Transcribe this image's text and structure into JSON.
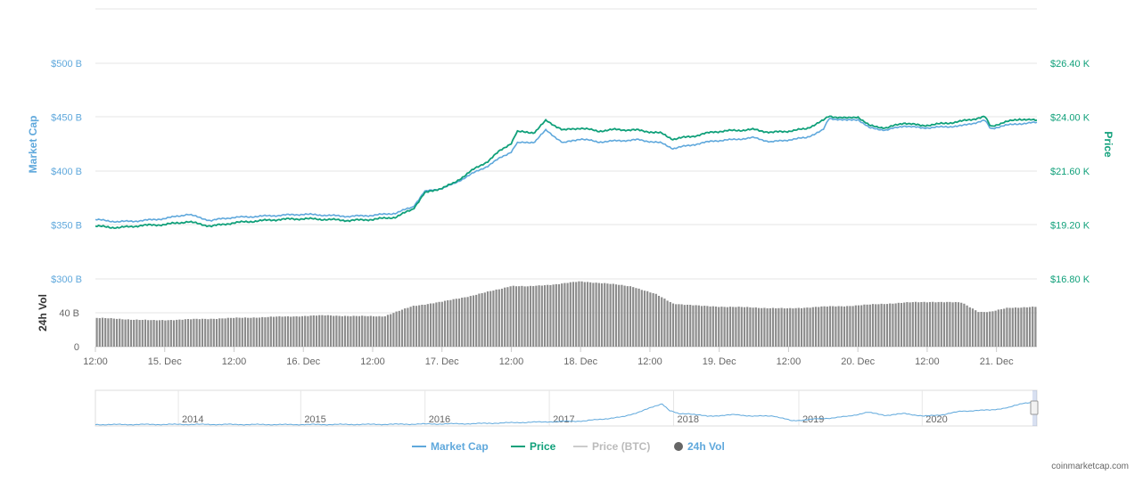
{
  "colors": {
    "market_cap": "#5fa8dc",
    "price": "#10a07a",
    "price_btc": "#cccccc",
    "volume": "#666666",
    "volume_bar": "#8c8c8c",
    "grid": "#e6e6e6",
    "axis_text": "#666666"
  },
  "chart_data": {
    "type": "line",
    "grid": true,
    "legend_position": "bottom-center",
    "market_cap_axis": {
      "title": "Market Cap",
      "ticks": [
        "$500 B",
        "$450 B",
        "$400 B",
        "$350 B",
        "$300 B"
      ],
      "tick_values": [
        500,
        450,
        400,
        350,
        300
      ],
      "unit": "B USD",
      "range": [
        300,
        500
      ]
    },
    "price_axis": {
      "title": "Price",
      "ticks": [
        "$26.40 K",
        "$24.00 K",
        "$21.60 K",
        "$19.20 K",
        "$16.80 K"
      ],
      "tick_values": [
        26.4,
        24.0,
        21.6,
        19.2,
        16.8
      ],
      "unit": "K USD",
      "range": [
        16.8,
        26.4
      ]
    },
    "volume_axis": {
      "title": "24h Vol",
      "ticks": [
        "40 B",
        "0"
      ],
      "tick_values": [
        40,
        0
      ],
      "range": [
        0,
        60
      ]
    },
    "x_axis": {
      "range": [
        0,
        163
      ],
      "ticks": [
        {
          "x": 0,
          "label": "12:00"
        },
        {
          "x": 12,
          "label": "15. Dec"
        },
        {
          "x": 24,
          "label": "12:00"
        },
        {
          "x": 36,
          "label": "16. Dec"
        },
        {
          "x": 48,
          "label": "12:00"
        },
        {
          "x": 60,
          "label": "17. Dec"
        },
        {
          "x": 72,
          "label": "12:00"
        },
        {
          "x": 84,
          "label": "18. Dec"
        },
        {
          "x": 96,
          "label": "12:00"
        },
        {
          "x": 108,
          "label": "19. Dec"
        },
        {
          "x": 120,
          "label": "12:00"
        },
        {
          "x": 132,
          "label": "20. Dec"
        },
        {
          "x": 144,
          "label": "12:00"
        },
        {
          "x": 156,
          "label": "21. Dec"
        }
      ]
    },
    "series": [
      {
        "name": "Market Cap",
        "x": [
          0,
          4,
          8,
          12,
          16,
          20,
          22,
          24,
          28,
          32,
          36,
          40,
          44,
          48,
          52,
          55,
          57,
          60,
          62,
          65,
          68,
          70,
          72,
          73,
          76,
          78,
          81,
          84,
          87,
          90,
          94,
          98,
          100,
          104,
          107,
          110,
          114,
          117,
          120,
          123,
          126,
          127,
          130,
          132,
          134,
          137,
          140,
          143,
          147,
          150,
          154,
          155,
          157,
          160,
          163
        ],
        "values": [
          355,
          353,
          354,
          356,
          360,
          354,
          356,
          357,
          358,
          359,
          360,
          359,
          358,
          359,
          361,
          367,
          381,
          384,
          388,
          397,
          405,
          412,
          418,
          426,
          427,
          438,
          426,
          430,
          427,
          428,
          429,
          426,
          421,
          425,
          428,
          429,
          431,
          427,
          429,
          431,
          438,
          449,
          447,
          448,
          440,
          438,
          442,
          440,
          441,
          442,
          447,
          439,
          442,
          444,
          445
        ]
      },
      {
        "name": "Price",
        "x": [
          0,
          4,
          8,
          12,
          16,
          20,
          22,
          24,
          28,
          32,
          36,
          40,
          44,
          48,
          52,
          55,
          57,
          60,
          62,
          65,
          68,
          70,
          72,
          73,
          76,
          78,
          81,
          84,
          87,
          90,
          94,
          98,
          100,
          104,
          107,
          110,
          114,
          117,
          120,
          123,
          126,
          127,
          130,
          132,
          134,
          137,
          140,
          143,
          147,
          150,
          154,
          155,
          157,
          160,
          163
        ],
        "values": [
          19.15,
          19.08,
          19.18,
          19.22,
          19.35,
          19.15,
          19.22,
          19.3,
          19.38,
          19.45,
          19.48,
          19.45,
          19.4,
          19.45,
          19.55,
          19.92,
          20.62,
          20.85,
          21.05,
          21.6,
          22.05,
          22.5,
          22.85,
          23.35,
          23.32,
          23.85,
          23.42,
          23.52,
          23.38,
          23.45,
          23.42,
          23.28,
          23.02,
          23.18,
          23.35,
          23.4,
          23.45,
          23.32,
          23.38,
          23.48,
          23.85,
          24.05,
          23.95,
          24.02,
          23.62,
          23.52,
          23.75,
          23.62,
          23.72,
          23.82,
          24.02,
          23.58,
          23.75,
          23.92,
          23.85
        ]
      },
      {
        "name": "24h Vol",
        "x": [
          0,
          10,
          20,
          30,
          40,
          45,
          50,
          55,
          60,
          65,
          70,
          72,
          75,
          80,
          84,
          88,
          93,
          97,
          100,
          105,
          110,
          115,
          120,
          125,
          130,
          135,
          140,
          145,
          150,
          153,
          155,
          158,
          163
        ],
        "values": [
          34,
          31,
          33,
          35,
          37,
          36,
          36,
          48,
          53,
          60,
          68,
          72,
          71,
          74,
          77,
          75,
          71,
          62,
          51,
          48,
          47,
          46,
          45,
          47,
          48,
          50,
          52,
          53,
          52,
          41,
          41,
          46,
          47
        ]
      }
    ],
    "navigator": {
      "labels": [
        "2014",
        "2015",
        "2016",
        "2017",
        "2018",
        "2019",
        "2020"
      ],
      "label_positions": [
        0.09,
        0.22,
        0.352,
        0.484,
        0.616,
        0.749,
        0.88
      ],
      "series_name": "Market Cap",
      "x": [
        0,
        0.1,
        0.2,
        0.3,
        0.4,
        0.46,
        0.52,
        0.56,
        0.58,
        0.6,
        0.6,
        0.61,
        0.62,
        0.63,
        0.65,
        0.68,
        0.7,
        0.72,
        0.74,
        0.76,
        0.78,
        0.8,
        0.82,
        0.84,
        0.86,
        0.88,
        0.9,
        0.92,
        0.95,
        0.97,
        0.985,
        1
      ],
      "values": [
        0.02,
        0.03,
        0.02,
        0.03,
        0.06,
        0.12,
        0.18,
        0.35,
        0.6,
        0.9,
        1.0,
        0.62,
        0.48,
        0.5,
        0.38,
        0.45,
        0.38,
        0.4,
        0.18,
        0.25,
        0.3,
        0.38,
        0.55,
        0.42,
        0.5,
        0.38,
        0.45,
        0.6,
        0.65,
        0.75,
        0.95,
        1.0
      ]
    }
  },
  "legend": [
    {
      "label": "Market Cap",
      "kind": "line",
      "color_key": "market_cap"
    },
    {
      "label": "Price",
      "kind": "line",
      "color_key": "price"
    },
    {
      "label": "Price (BTC)",
      "kind": "line",
      "color_key": "price_btc"
    },
    {
      "label": "24h Vol",
      "kind": "dot",
      "color_key": "volume"
    }
  ],
  "credit": "coinmarketcap.com"
}
